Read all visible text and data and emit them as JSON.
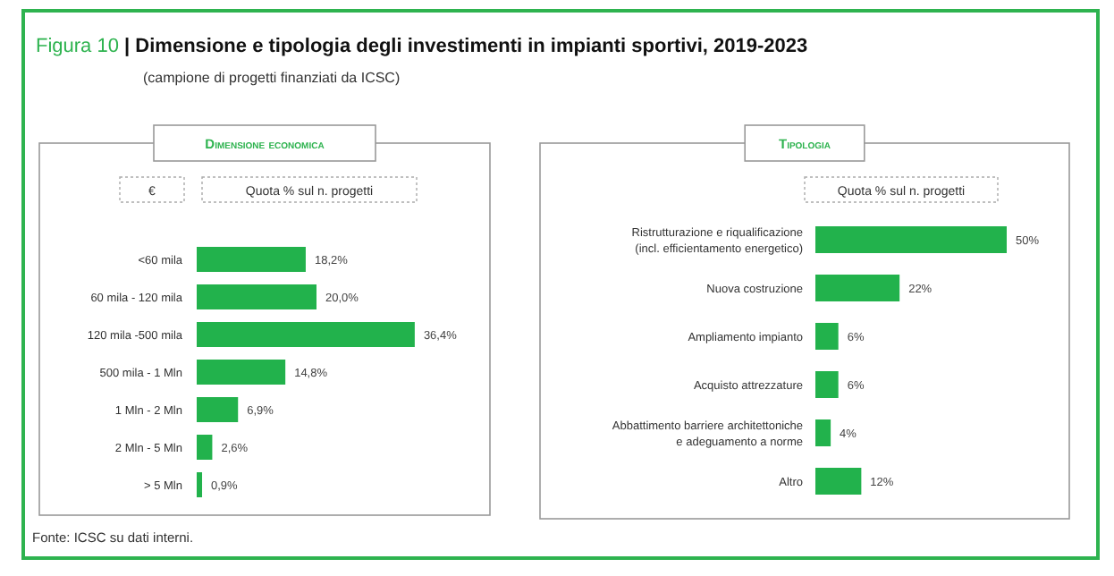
{
  "chart_data": [
    {
      "type": "bar",
      "orientation": "horizontal",
      "title": "Dimensione economica",
      "ylabel": "€",
      "xlabel": "Quota % sul n. progetti",
      "categories": [
        "<60 mila",
        "60 mila - 120 mila",
        "120 mila -500 mila",
        "500 mila - 1 Mln",
        "1 Mln - 2 Mln",
        "2 Mln - 5 Mln",
        "> 5 Mln"
      ],
      "values": [
        18.2,
        20.0,
        36.4,
        14.8,
        6.9,
        2.6,
        0.9
      ],
      "value_labels": [
        "18,2%",
        "20,0%",
        "36,4%",
        "14,8%",
        "6,9%",
        "2,6%",
        "0,9%"
      ],
      "color": "#22b24c",
      "annotations": [
        "Figura 10 | Dimensione e tipologia degli investimenti in impianti sportivi, 2019-2023",
        "(campione di progetti finanziati da ICSC)",
        "Fonte: ICSC su dati interni."
      ]
    },
    {
      "type": "bar",
      "orientation": "horizontal",
      "title": "Tipologia",
      "xlabel": "Quota % sul n. progetti",
      "categories": [
        "Ristrutturazione e riqualificazione (incl. efficientamento energetico)",
        "Nuova costruzione",
        "Ampliamento impianto",
        "Acquisto attrezzature",
        "Abbattimento barriere architettoniche e adeguamento a norme",
        "Altro"
      ],
      "values": [
        50,
        22,
        6,
        6,
        4,
        12
      ],
      "value_labels": [
        "50%",
        "22%",
        "6%",
        "6%",
        "4%",
        "12%"
      ],
      "color": "#22b24c"
    }
  ]
}
